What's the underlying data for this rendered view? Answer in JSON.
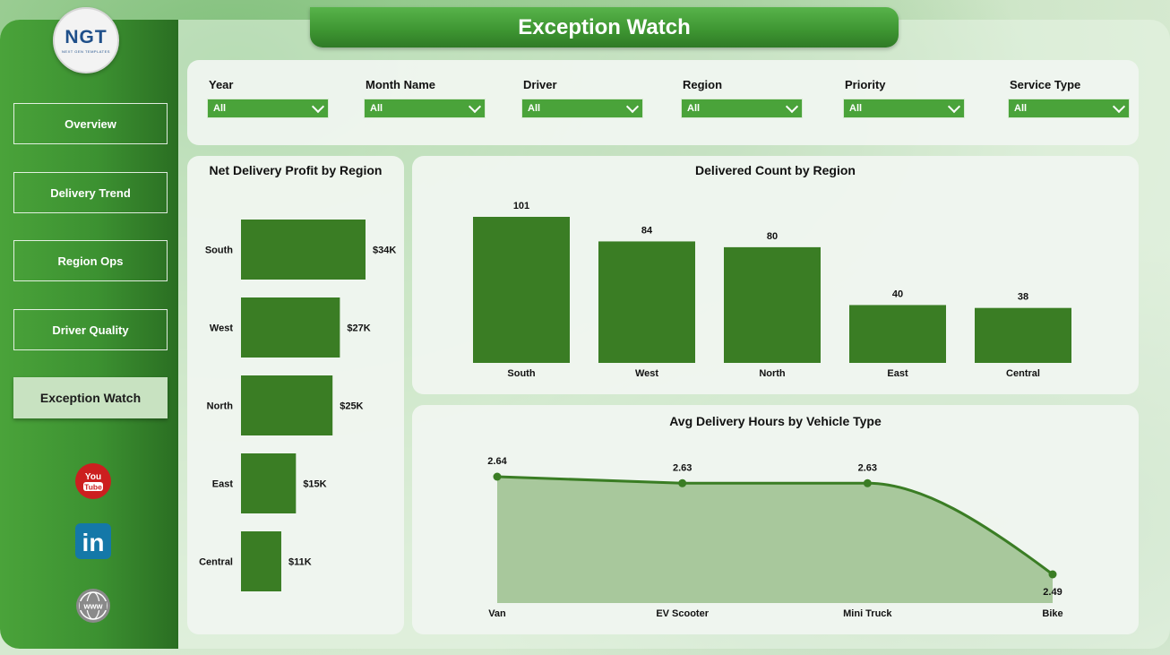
{
  "app": {
    "title": "Exception Watch"
  },
  "logo": {
    "mark": "NGT",
    "sub": "NEXT GEN TEMPLATES"
  },
  "nav": {
    "items": [
      {
        "label": "Overview"
      },
      {
        "label": "Delivery Trend"
      },
      {
        "label": "Region Ops"
      },
      {
        "label": "Driver Quality"
      },
      {
        "label": "Exception Watch",
        "active": true
      }
    ]
  },
  "social": {
    "youtube": {
      "icon": "youtube-icon",
      "label_top": "You",
      "label_bottom": "Tube",
      "color": "#cc1f1f"
    },
    "linkedin": {
      "icon": "linkedin-icon",
      "label": "in",
      "color": "#1478a8"
    },
    "web": {
      "icon": "globe-icon",
      "label": "www",
      "color": "#8a8a8a"
    }
  },
  "filters": [
    {
      "label": "Year",
      "value": "All"
    },
    {
      "label": "Month Name",
      "value": "All"
    },
    {
      "label": "Driver",
      "value": "All"
    },
    {
      "label": "Region",
      "value": "All"
    },
    {
      "label": "Priority",
      "value": "All"
    },
    {
      "label": "Service Type",
      "value": "All"
    }
  ],
  "colors": {
    "accent": "#3a7d24",
    "area_fill": "#a3c597",
    "sidebar": "#3c9131",
    "filter_bg": "#4aa33a"
  },
  "chart_data": [
    {
      "type": "bar",
      "orientation": "horizontal",
      "title": "Net Delivery Profit by Region",
      "categories": [
        "South",
        "West",
        "North",
        "East",
        "Central"
      ],
      "values": [
        34,
        27,
        25,
        15,
        11
      ],
      "data_labels": [
        "$34K",
        "$27K",
        "$25K",
        "$15K",
        "$11K"
      ],
      "unit": "K USD",
      "xlim": [
        0,
        34
      ],
      "grid": false
    },
    {
      "type": "bar",
      "orientation": "vertical",
      "title": "Delivered Count by Region",
      "categories": [
        "South",
        "West",
        "North",
        "East",
        "Central"
      ],
      "values": [
        101,
        84,
        80,
        40,
        38
      ],
      "ylim": [
        0,
        101
      ],
      "grid": false
    },
    {
      "type": "area",
      "title": "Avg Delivery Hours by Vehicle Type",
      "categories": [
        "Van",
        "EV Scooter",
        "Mini Truck",
        "Bike"
      ],
      "values": [
        2.64,
        2.63,
        2.63,
        2.49
      ],
      "ylim": [
        2.49,
        2.64
      ],
      "grid": false
    }
  ]
}
